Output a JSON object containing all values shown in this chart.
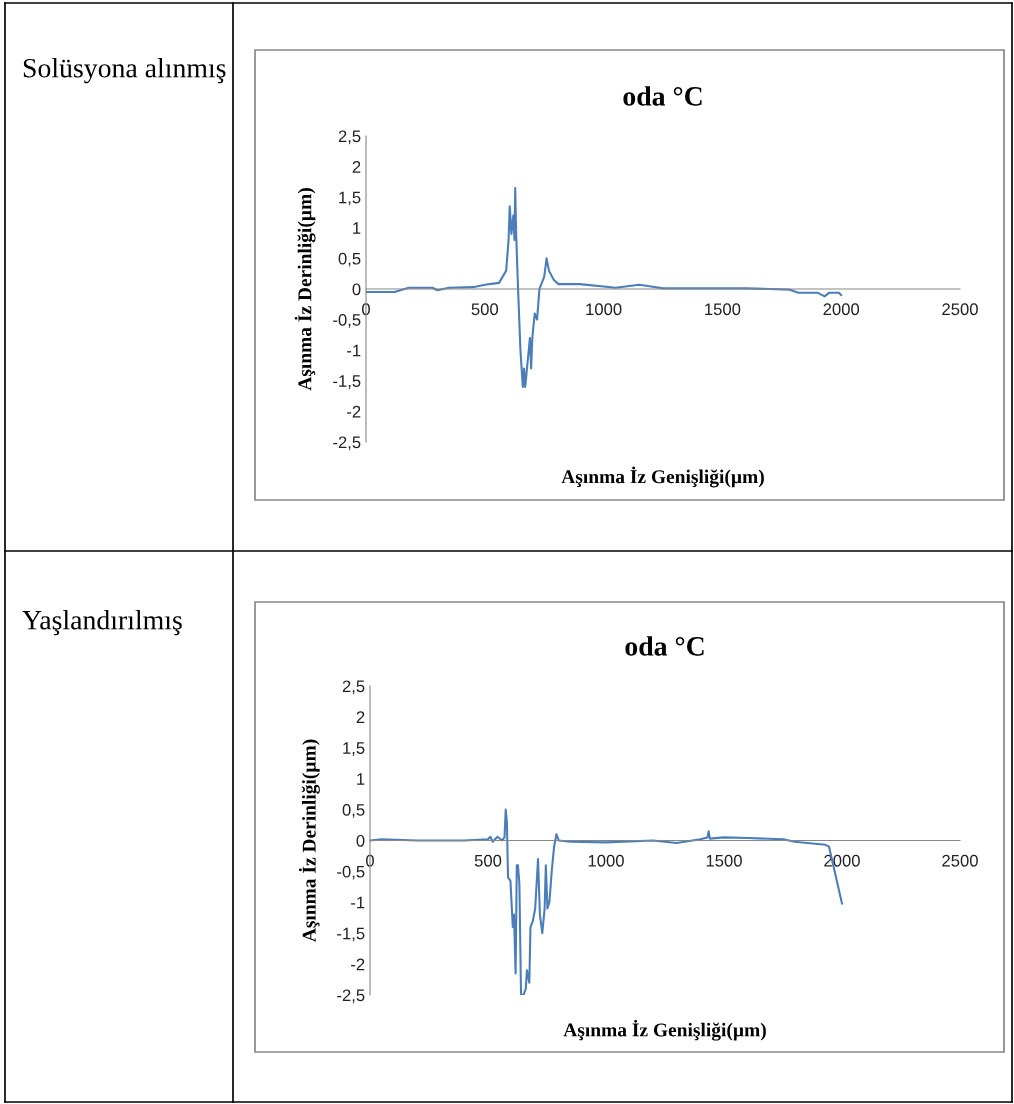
{
  "chart_data": [
    {
      "type": "line",
      "title": "oda °C",
      "xlabel": "Aşınma İz Genişliği(µm)",
      "ylabel": "Aşınma İz Derinliği(µm)",
      "annotations": [
        "Solüsyona alınmış"
      ],
      "xlim": [
        0,
        2500
      ],
      "xticks": [
        0,
        500,
        1000,
        1500,
        2000,
        2500
      ],
      "ylim": [
        -2.5,
        2.5
      ],
      "yticks": [
        {
          "value": -2.5,
          "label": "-2,5"
        },
        -2,
        {
          "value": -1.5,
          "label": "-1,5"
        },
        -1,
        {
          "value": -0.5,
          "label": "-0,5"
        },
        0,
        {
          "value": 0.5,
          "label": "0,5"
        },
        1,
        {
          "value": 1.5,
          "label": "1,5"
        },
        2,
        {
          "value": 2.5,
          "label": "2,5"
        }
      ],
      "grid": false,
      "legend": false,
      "series": [
        {
          "color": "#4a7ebb",
          "x": [
            0,
            120,
            180,
            280,
            300,
            350,
            450,
            500,
            560,
            590,
            600,
            605,
            612,
            620,
            625,
            628,
            632,
            640,
            650,
            660,
            665,
            670,
            680,
            690,
            695,
            700,
            710,
            720,
            730,
            740,
            750,
            760,
            770,
            790,
            810,
            900,
            1000,
            1050,
            1150,
            1200,
            1250,
            1500,
            1600,
            1700,
            1780,
            1820,
            1900,
            1930,
            1950,
            1990,
            2000
          ],
          "values": [
            -0.05,
            -0.05,
            0.02,
            0.02,
            -0.02,
            0.02,
            0.03,
            0.07,
            0.1,
            0.3,
            0.8,
            1.35,
            0.9,
            1.2,
            0.8,
            1.65,
            0.9,
            0,
            -1.0,
            -1.6,
            -1.3,
            -1.6,
            -1.2,
            -0.8,
            -1.3,
            -0.8,
            -0.4,
            -0.5,
            0,
            0.1,
            0.2,
            0.5,
            0.3,
            0.15,
            0.08,
            0.08,
            0.04,
            0.02,
            0.07,
            0.04,
            0.01,
            0.01,
            0.01,
            0,
            -0.01,
            -0.06,
            -0.06,
            -0.12,
            -0.06,
            -0.06,
            -0.1
          ]
        }
      ]
    },
    {
      "type": "line",
      "title": "oda °C",
      "xlabel": "Aşınma İz Genişliği(µm)",
      "ylabel": "Aşınma İz Derinliği(µm)",
      "annotations": [
        "Yaşlandırılmış"
      ],
      "xlim": [
        0,
        2500
      ],
      "xticks": [
        0,
        500,
        1000,
        1500,
        2000,
        2500
      ],
      "ylim": [
        -2.5,
        2.5
      ],
      "yticks": [
        {
          "value": -2.5,
          "label": "-2,5"
        },
        -2,
        {
          "value": -1.5,
          "label": "-1,5"
        },
        -1,
        {
          "value": -0.5,
          "label": "-0,5"
        },
        0,
        {
          "value": 0.5,
          "label": "0,5"
        },
        1,
        {
          "value": 1.5,
          "label": "1,5"
        },
        2,
        {
          "value": 2.5,
          "label": "2,5"
        }
      ],
      "grid": false,
      "legend": false,
      "series": [
        {
          "color": "#4a7ebb",
          "x": [
            0,
            50,
            200,
            400,
            500,
            510,
            520,
            540,
            560,
            570,
            575,
            580,
            585,
            595,
            605,
            610,
            617,
            622,
            627,
            633,
            640,
            650,
            660,
            665,
            675,
            680,
            690,
            700,
            712,
            720,
            730,
            740,
            745,
            752,
            760,
            770,
            780,
            790,
            800,
            850,
            1000,
            1200,
            1300,
            1400,
            1430,
            1435,
            1440,
            1500,
            1600,
            1750,
            1800,
            1930,
            1945,
            2000
          ],
          "values": [
            0,
            0.02,
            0,
            0,
            0.02,
            0.06,
            -0.02,
            0.06,
            0,
            0.05,
            0.5,
            0.3,
            -0.6,
            -0.65,
            -1.4,
            -1.2,
            -2.15,
            -0.4,
            -0.4,
            -0.7,
            -2.5,
            -2.5,
            -2.4,
            -2.1,
            -2.3,
            -1.4,
            -1.3,
            -1.1,
            -0.3,
            -1.2,
            -1.5,
            -1.1,
            -0.4,
            -1.1,
            -1.0,
            -0.5,
            -0.1,
            0.1,
            0.0,
            -0.02,
            -0.03,
            0,
            -0.04,
            0.02,
            0.05,
            0.15,
            0.03,
            0.05,
            0.04,
            0.02,
            -0.02,
            -0.07,
            -0.1,
            -1.02
          ]
        }
      ]
    }
  ]
}
